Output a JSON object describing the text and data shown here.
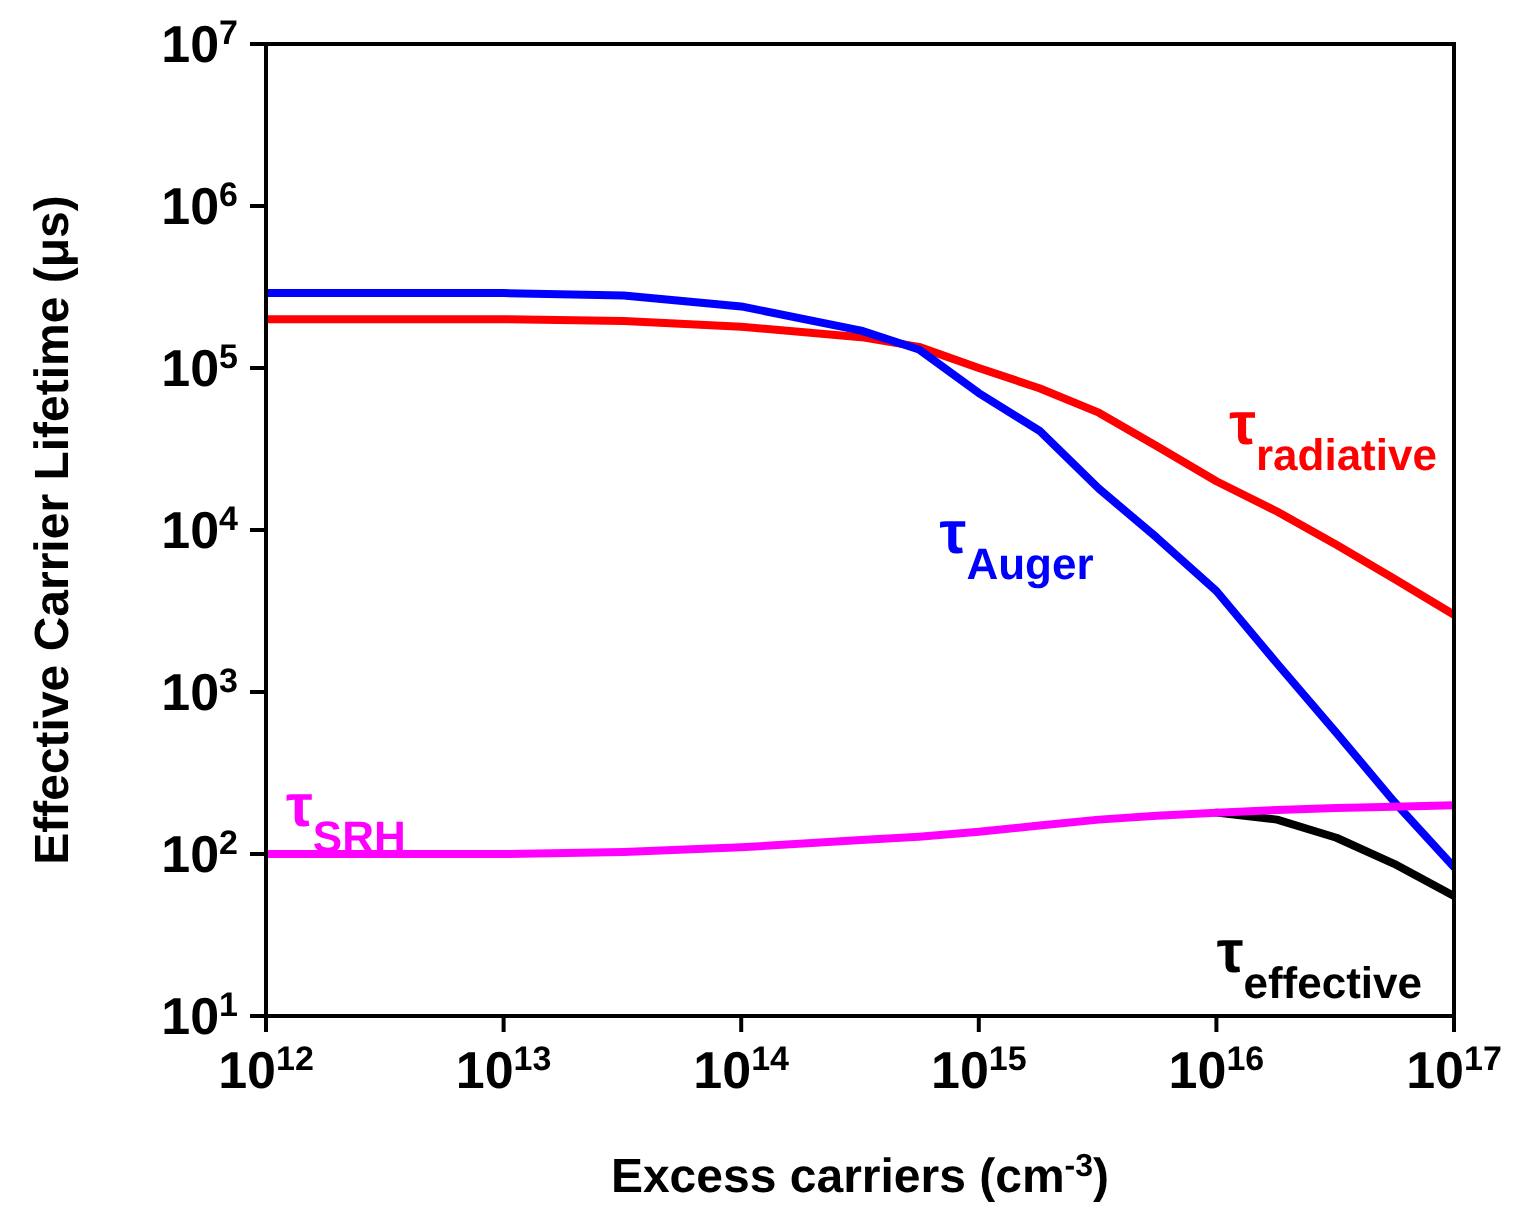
{
  "chart_data": {
    "type": "line",
    "xlabel": "Excess carriers (cm$^{-3}$)",
    "ylabel": "Effective Carrier Lifetime (μs)",
    "log": "xy",
    "marker": "none",
    "line_style": "solid",
    "x": [
      1000000000000.0,
      10000000000000.0,
      32000000000000.0,
      100000000000000.0,
      320000000000000.0,
      560000000000000.0,
      1000000000000000.0,
      1800000000000000.0,
      3200000000000000.0,
      5600000000000000.0,
      1e+16,
      1.8e+16,
      3.2e+16,
      5.6e+16,
      1e+17
    ],
    "xlim": [
      1000000000000.0,
      1e+17
    ],
    "xticks": [
      {
        "value": 1000000000000.0,
        "label": "10$^{12}$"
      },
      {
        "value": 10000000000000.0,
        "label": "10$^{13}$"
      },
      {
        "value": 100000000000000.0,
        "label": "10$^{14}$"
      },
      {
        "value": 1000000000000000.0,
        "label": "10$^{15}$"
      },
      {
        "value": 1e+16,
        "label": "10$^{16}$"
      },
      {
        "value": 1e+17,
        "label": "10$^{17}$"
      }
    ],
    "ylim": [
      10,
      10000000.0
    ],
    "yticks": [
      {
        "value": 10,
        "label": "10$^{1}$"
      },
      {
        "value": 100,
        "label": "10$^{2}$"
      },
      {
        "value": 1000,
        "label": "10$^{3}$"
      },
      {
        "value": 10000,
        "label": "10$^{4}$"
      },
      {
        "value": 100000,
        "label": "10$^{5}$"
      },
      {
        "value": 1000000,
        "label": "10$^{6}$"
      },
      {
        "value": 10000000,
        "label": "10$^{7}$"
      }
    ],
    "series": [
      {
        "name": "τ$_{effective}$",
        "color": "#000000",
        "values": [
          null,
          null,
          null,
          null,
          null,
          null,
          null,
          null,
          null,
          null,
          180,
          163,
          126,
          87,
          55
        ]
      },
      {
        "name": "τ$_{radiative}$",
        "color": "#ff0000",
        "values": [
          200000,
          200000,
          195000,
          180000,
          155000,
          135000,
          100000,
          75000,
          53000,
          33000,
          20000,
          13000,
          8100,
          5000,
          3000
        ]
      },
      {
        "name": "τ$_{Auger}$",
        "color": "#0000ff",
        "values": [
          290000,
          290000,
          280000,
          240000,
          170000,
          130000,
          70000,
          41000,
          18000,
          9000,
          4200,
          1500,
          560,
          210,
          83
        ]
      },
      {
        "name": "τ$_{SRH}$",
        "color": "#ff00ff",
        "values": [
          100,
          100,
          103,
          110,
          122,
          128,
          137,
          150,
          163,
          172,
          180,
          187,
          192,
          196,
          200
        ]
      }
    ]
  }
}
